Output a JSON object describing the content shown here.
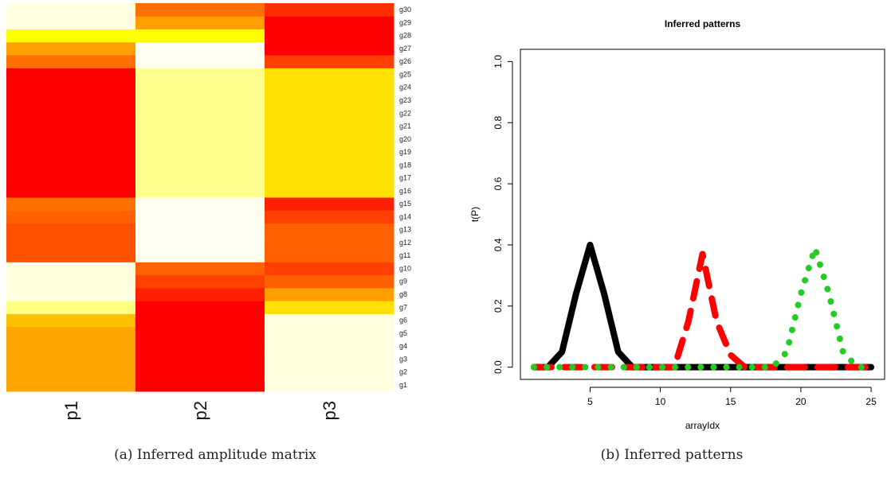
{
  "captions": {
    "a": "(a) Inferred amplitude matrix",
    "b": "(b) Inferred patterns"
  },
  "chart_data": [
    {
      "type": "heatmap",
      "columns": [
        "p1",
        "p2",
        "p3"
      ],
      "rows": [
        "g1",
        "g2",
        "g3",
        "g4",
        "g5",
        "g6",
        "g7",
        "g8",
        "g9",
        "g10",
        "g11",
        "g12",
        "g13",
        "g14",
        "g15",
        "g16",
        "g17",
        "g18",
        "g19",
        "g20",
        "g21",
        "g22",
        "g23",
        "g24",
        "g25",
        "g26",
        "g27",
        "g28",
        "g29",
        "g30"
      ],
      "cell_colors": [
        [
          "#ffa500",
          "#ff0000",
          "#ffffe0"
        ],
        [
          "#ffa500",
          "#ff0000",
          "#ffffe0"
        ],
        [
          "#ffa500",
          "#ff0000",
          "#ffffe0"
        ],
        [
          "#ffa500",
          "#ff0000",
          "#ffffe0"
        ],
        [
          "#ffa500",
          "#ff0000",
          "#ffffe0"
        ],
        [
          "#ffc000",
          "#ff0000",
          "#ffffe0"
        ],
        [
          "#ffff80",
          "#ff0000",
          "#ffe000"
        ],
        [
          "#ffffe0",
          "#ff2000",
          "#ffa000"
        ],
        [
          "#ffffe0",
          "#ff4000",
          "#ff6000"
        ],
        [
          "#ffffe0",
          "#ff6000",
          "#ff4000"
        ],
        [
          "#ff5000",
          "#fffff0",
          "#ff6000"
        ],
        [
          "#ff5000",
          "#fffff0",
          "#ff6000"
        ],
        [
          "#ff5000",
          "#fffff0",
          "#ff6000"
        ],
        [
          "#ff6000",
          "#fffff0",
          "#ff4000"
        ],
        [
          "#ff7000",
          "#fffff0",
          "#ff2000"
        ],
        [
          "#ff0000",
          "#ffff90",
          "#ffe000"
        ],
        [
          "#ff0000",
          "#ffff90",
          "#ffe000"
        ],
        [
          "#ff0000",
          "#ffff90",
          "#ffe000"
        ],
        [
          "#ff0000",
          "#ffff90",
          "#ffe000"
        ],
        [
          "#ff0000",
          "#ffff90",
          "#ffe000"
        ],
        [
          "#ff0000",
          "#ffff90",
          "#ffe000"
        ],
        [
          "#ff0000",
          "#ffff90",
          "#ffe000"
        ],
        [
          "#ff0000",
          "#ffff90",
          "#ffe000"
        ],
        [
          "#ff0000",
          "#ffff90",
          "#ffe000"
        ],
        [
          "#ff0000",
          "#ffff90",
          "#ffe000"
        ],
        [
          "#ff7000",
          "#fffff0",
          "#ff4000"
        ],
        [
          "#ffa000",
          "#fffff0",
          "#ff0000"
        ],
        [
          "#ffff00",
          "#ffff00",
          "#ff0000"
        ],
        [
          "#ffffe0",
          "#ffa000",
          "#ff0000"
        ],
        [
          "#ffffe0",
          "#ff7000",
          "#ff3000"
        ]
      ]
    },
    {
      "type": "line",
      "title": "Inferred patterns",
      "xlabel": "arrayIdx",
      "ylabel": "t(P)",
      "xlim": [
        0.04,
        25.96
      ],
      "ylim": [
        -0.04,
        1.04
      ],
      "xticks": [
        5,
        10,
        15,
        20,
        25
      ],
      "yticks": [
        0.0,
        0.2,
        0.4,
        0.6,
        0.8,
        1.0
      ],
      "ytick_labels": [
        "0.0",
        "0.2",
        "0.4",
        "0.6",
        "0.8",
        "1.0"
      ],
      "x": [
        1,
        2,
        3,
        4,
        5,
        6,
        7,
        8,
        9,
        10,
        11,
        12,
        13,
        14,
        15,
        16,
        17,
        18,
        19,
        20,
        21,
        22,
        23,
        24,
        25
      ],
      "series": [
        {
          "style": "solid",
          "color": "#000000",
          "values": [
            0,
            0,
            0.05,
            0.24,
            0.4,
            0.24,
            0.05,
            0,
            0,
            0,
            0,
            0,
            0,
            0,
            0,
            0,
            0,
            0,
            0,
            0,
            0,
            0,
            0,
            0,
            0
          ]
        },
        {
          "style": "dashed",
          "color": "#ff0000",
          "values": [
            0,
            0,
            0,
            0,
            0,
            0,
            0,
            0,
            0,
            0,
            0,
            0.15,
            0.37,
            0.15,
            0.04,
            0,
            0,
            0,
            0,
            0,
            0,
            0,
            0,
            0,
            0
          ]
        },
        {
          "style": "dotted",
          "color": "#22cc22",
          "values": [
            0,
            0,
            0,
            0,
            0,
            0,
            0,
            0,
            0,
            0,
            0,
            0,
            0,
            0,
            0,
            0,
            0,
            0,
            0.05,
            0.24,
            0.39,
            0.24,
            0.05,
            0,
            0
          ]
        }
      ]
    }
  ]
}
